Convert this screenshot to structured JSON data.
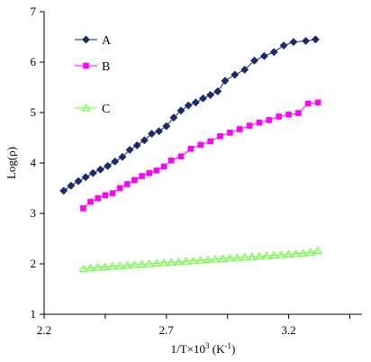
{
  "chart_data": {
    "type": "line",
    "title": "",
    "xlabel": "1/T×10",
    "xlabel_sup": "3",
    "xlabel_unit": " (K",
    "xlabel_unit_sup": "-1",
    "xlabel_close": ")",
    "ylabel": "Log(ρ)",
    "xlim": [
      2.2,
      3.5
    ],
    "ylim": [
      1,
      7
    ],
    "xticks": [
      2.2,
      2.7,
      3.2
    ],
    "xtick_labels": [
      "2.2",
      "2.7",
      "3.2"
    ],
    "yticks": [
      1,
      2,
      3,
      4,
      5,
      6,
      7
    ],
    "ytick_labels": [
      "1",
      "2",
      "3",
      "4",
      "5",
      "6",
      "7"
    ],
    "grid": false,
    "legend_position": "top-left",
    "series": [
      {
        "name": "A",
        "color": "#1a2a6c",
        "marker": "diamond",
        "x": [
          2.28,
          2.31,
          2.34,
          2.37,
          2.4,
          2.43,
          2.46,
          2.49,
          2.52,
          2.55,
          2.58,
          2.61,
          2.64,
          2.67,
          2.7,
          2.73,
          2.76,
          2.79,
          2.82,
          2.85,
          2.88,
          2.91,
          2.94,
          2.98,
          3.02,
          3.06,
          3.1,
          3.14,
          3.18,
          3.22,
          3.27,
          3.31
        ],
        "y": [
          3.45,
          3.55,
          3.64,
          3.72,
          3.8,
          3.87,
          3.94,
          4.03,
          4.12,
          4.26,
          4.35,
          4.45,
          4.58,
          4.63,
          4.73,
          4.9,
          5.04,
          5.14,
          5.2,
          5.28,
          5.35,
          5.42,
          5.63,
          5.75,
          5.85,
          6.03,
          6.12,
          6.2,
          6.33,
          6.4,
          6.42,
          6.45
        ]
      },
      {
        "name": "B",
        "color": "#ff00ff",
        "marker": "square",
        "x": [
          2.36,
          2.39,
          2.42,
          2.45,
          2.48,
          2.51,
          2.54,
          2.57,
          2.6,
          2.63,
          2.66,
          2.69,
          2.72,
          2.76,
          2.8,
          2.84,
          2.88,
          2.92,
          2.96,
          3.0,
          3.04,
          3.08,
          3.12,
          3.16,
          3.2,
          3.24,
          3.28,
          3.32
        ],
        "y": [
          3.1,
          3.23,
          3.3,
          3.36,
          3.4,
          3.5,
          3.58,
          3.66,
          3.74,
          3.8,
          3.85,
          3.93,
          4.05,
          4.13,
          4.28,
          4.36,
          4.43,
          4.53,
          4.6,
          4.67,
          4.74,
          4.8,
          4.85,
          4.92,
          4.96,
          4.99,
          5.18,
          5.2
        ]
      },
      {
        "name": "C",
        "color": "#66ff33",
        "marker": "triangle",
        "x": [
          2.36,
          2.39,
          2.42,
          2.45,
          2.48,
          2.51,
          2.54,
          2.57,
          2.6,
          2.63,
          2.66,
          2.69,
          2.72,
          2.75,
          2.78,
          2.81,
          2.84,
          2.87,
          2.9,
          2.93,
          2.96,
          2.99,
          3.02,
          3.05,
          3.08,
          3.11,
          3.14,
          3.17,
          3.2,
          3.23,
          3.26,
          3.29,
          3.32
        ],
        "y": [
          1.9,
          1.92,
          1.93,
          1.94,
          1.95,
          1.96,
          1.97,
          1.98,
          1.99,
          2.0,
          2.01,
          2.02,
          2.03,
          2.04,
          2.05,
          2.06,
          2.07,
          2.08,
          2.09,
          2.1,
          2.11,
          2.12,
          2.13,
          2.14,
          2.15,
          2.16,
          2.17,
          2.18,
          2.19,
          2.2,
          2.21,
          2.23,
          2.26
        ]
      }
    ]
  }
}
